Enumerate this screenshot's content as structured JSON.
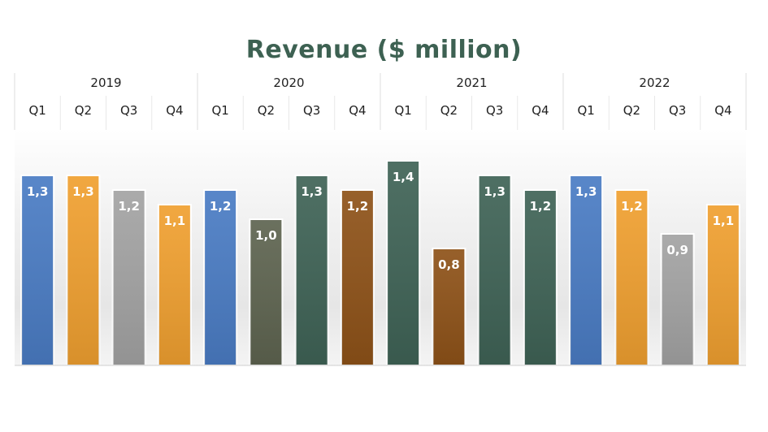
{
  "colors": {
    "blue": "#4a7cc4",
    "orange": "#f0a030",
    "gray": "#a3a3a3",
    "olive": "#5e6450",
    "teal": "#3f6356",
    "brown": "#8e5218",
    "title": "#3d6152"
  },
  "chart_data": {
    "type": "bar",
    "title": "Revenue ($ million)",
    "xlabel": "",
    "ylabel": "",
    "ylim": [
      0,
      1.4
    ],
    "grid": false,
    "legend": "none",
    "years": [
      {
        "label": "2019",
        "quarters": [
          "Q1",
          "Q2",
          "Q3",
          "Q4"
        ]
      },
      {
        "label": "2020",
        "quarters": [
          "Q1",
          "Q2",
          "Q3",
          "Q4"
        ]
      },
      {
        "label": "2021",
        "quarters": [
          "Q1",
          "Q2",
          "Q3",
          "Q4"
        ]
      },
      {
        "label": "2022",
        "quarters": [
          "Q1",
          "Q2",
          "Q3",
          "Q4"
        ]
      }
    ],
    "values": [
      1.3,
      1.3,
      1.2,
      1.1,
      1.2,
      1.0,
      1.3,
      1.2,
      1.4,
      0.8,
      1.3,
      1.2,
      1.3,
      1.2,
      0.9,
      1.1
    ],
    "value_labels": [
      "1,3",
      "1,3",
      "1,2",
      "1,1",
      "1,2",
      "1,0",
      "1,3",
      "1,2",
      "1,4",
      "0,8",
      "1,3",
      "1,2",
      "1,3",
      "1,2",
      "0,9",
      "1,1"
    ],
    "bar_colors": [
      "blue",
      "orange",
      "gray",
      "orange",
      "blue",
      "olive",
      "teal",
      "brown",
      "teal",
      "brown",
      "teal",
      "teal",
      "blue",
      "orange",
      "gray",
      "orange"
    ]
  }
}
